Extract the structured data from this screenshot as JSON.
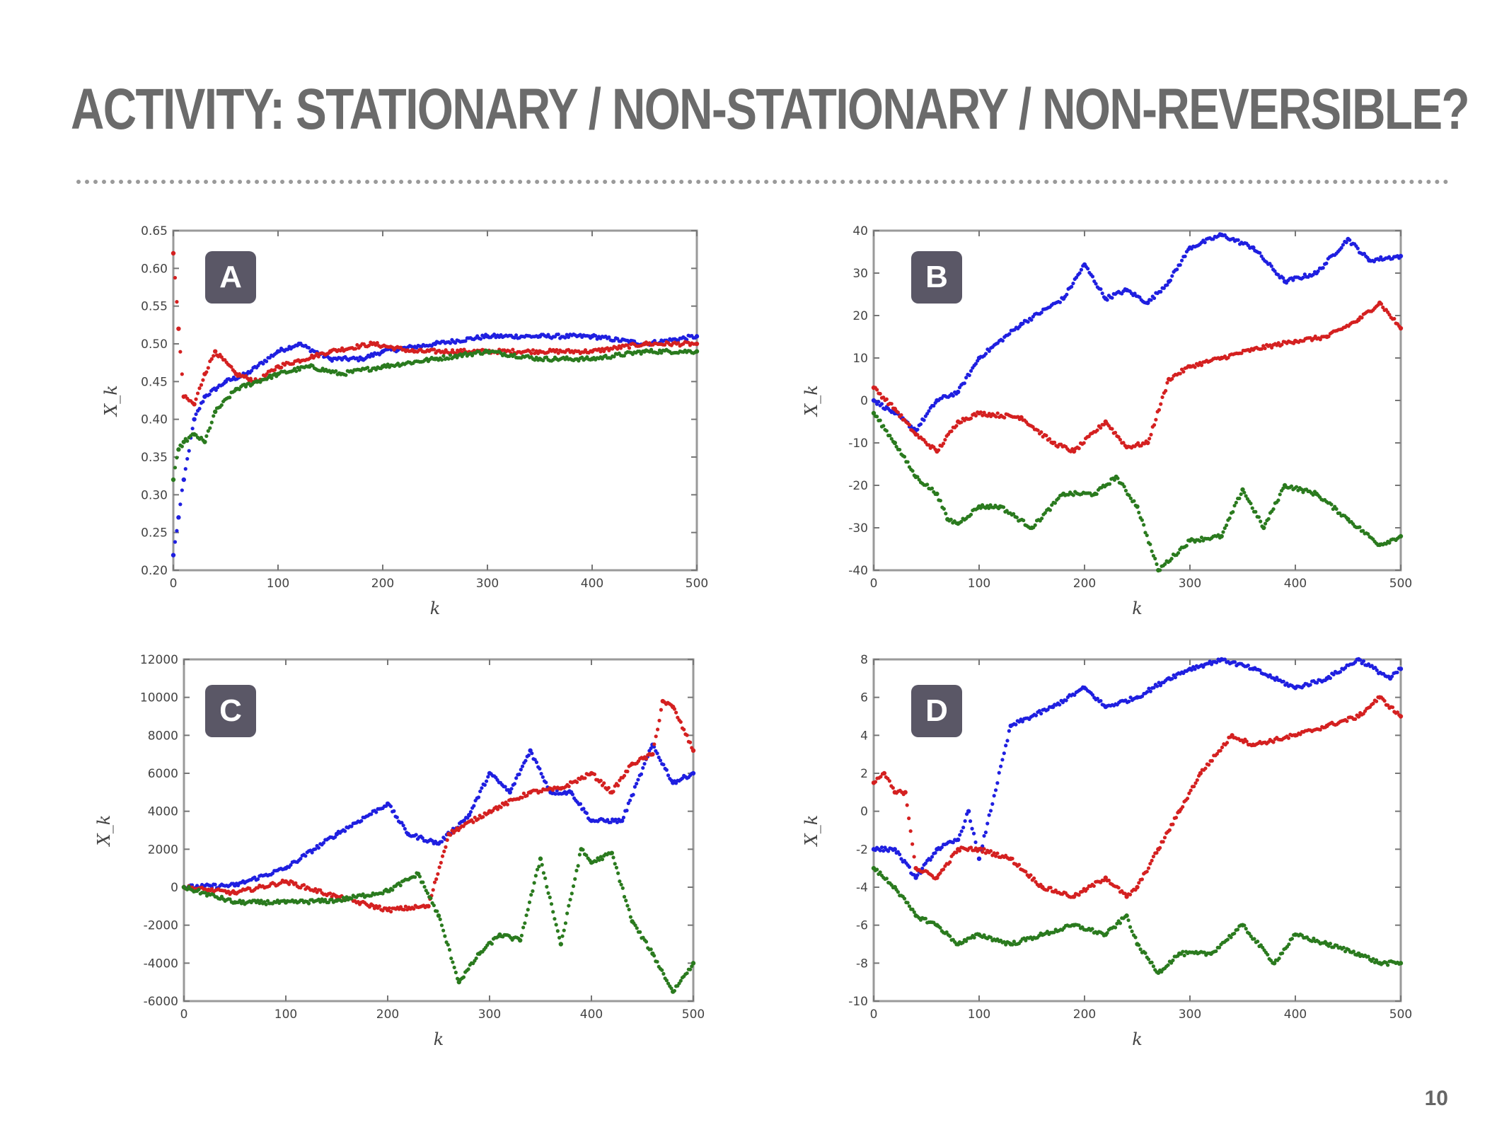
{
  "slide": {
    "title": "ACTIVITY: STATIONARY / NON-STATIONARY / NON-REVERSIBLE?",
    "page_number": "10"
  },
  "colors": {
    "blue": "#1f1fe0",
    "red": "#d42020",
    "green": "#2a7a1e",
    "label_bg": "#5a5766"
  },
  "chart_data": [
    {
      "panel": "A",
      "type": "scatter",
      "xlabel": "k",
      "ylabel": "X_k",
      "xlim": [
        0,
        500
      ],
      "ylim": [
        0.2,
        0.65
      ],
      "xticks": [
        "0",
        "100",
        "200",
        "300",
        "400",
        "500"
      ],
      "yticks": [
        "0.20",
        "0.25",
        "0.30",
        "0.35",
        "0.40",
        "0.45",
        "0.50",
        "0.55",
        "0.60",
        "0.65"
      ],
      "series": [
        {
          "color": "blue",
          "x": [
            0,
            5,
            10,
            20,
            30,
            50,
            70,
            100,
            120,
            150,
            180,
            200,
            250,
            300,
            350,
            400,
            450,
            500
          ],
          "y": [
            0.22,
            0.27,
            0.32,
            0.4,
            0.43,
            0.45,
            0.46,
            0.49,
            0.5,
            0.48,
            0.48,
            0.49,
            0.5,
            0.51,
            0.51,
            0.51,
            0.5,
            0.51
          ]
        },
        {
          "color": "red",
          "x": [
            0,
            5,
            10,
            20,
            30,
            40,
            60,
            80,
            100,
            150,
            190,
            230,
            300,
            350,
            400,
            450,
            500
          ],
          "y": [
            0.62,
            0.52,
            0.43,
            0.42,
            0.46,
            0.49,
            0.46,
            0.45,
            0.47,
            0.49,
            0.5,
            0.49,
            0.49,
            0.49,
            0.49,
            0.5,
            0.5
          ]
        },
        {
          "color": "green",
          "x": [
            0,
            5,
            10,
            20,
            30,
            40,
            60,
            80,
            100,
            130,
            160,
            200,
            250,
            300,
            350,
            400,
            450,
            500
          ],
          "y": [
            0.32,
            0.36,
            0.37,
            0.38,
            0.37,
            0.41,
            0.44,
            0.45,
            0.46,
            0.47,
            0.46,
            0.47,
            0.48,
            0.49,
            0.48,
            0.48,
            0.49,
            0.49
          ]
        }
      ]
    },
    {
      "panel": "B",
      "type": "scatter",
      "xlabel": "k",
      "ylabel": "X_k",
      "xlim": [
        0,
        500
      ],
      "ylim": [
        -40,
        40
      ],
      "xticks": [
        "0",
        "100",
        "200",
        "300",
        "400",
        "500"
      ],
      "yticks": [
        "-40",
        "-30",
        "-20",
        "-10",
        "0",
        "10",
        "20",
        "30",
        "40"
      ],
      "series": [
        {
          "color": "blue",
          "x": [
            0,
            20,
            40,
            60,
            80,
            100,
            140,
            180,
            200,
            220,
            240,
            260,
            280,
            300,
            330,
            360,
            390,
            420,
            450,
            470,
            500
          ],
          "y": [
            0,
            -3,
            -7,
            0,
            2,
            10,
            18,
            24,
            32,
            24,
            26,
            23,
            28,
            36,
            39,
            36,
            28,
            30,
            38,
            33,
            34
          ]
        },
        {
          "color": "red",
          "x": [
            0,
            20,
            40,
            60,
            80,
            100,
            140,
            170,
            190,
            220,
            240,
            260,
            280,
            300,
            330,
            360,
            400,
            430,
            460,
            480,
            500
          ],
          "y": [
            3,
            -2,
            -8,
            -12,
            -5,
            -3,
            -4,
            -10,
            -12,
            -5,
            -11,
            -10,
            5,
            8,
            10,
            12,
            14,
            15,
            19,
            23,
            17
          ]
        },
        {
          "color": "green",
          "x": [
            0,
            20,
            40,
            60,
            70,
            80,
            100,
            120,
            150,
            180,
            210,
            230,
            250,
            270,
            300,
            330,
            350,
            370,
            390,
            420,
            450,
            480,
            500
          ],
          "y": [
            -3,
            -10,
            -18,
            -22,
            -28,
            -29,
            -25,
            -25,
            -30,
            -22,
            -22,
            -18,
            -25,
            -40,
            -33,
            -32,
            -21,
            -30,
            -20,
            -22,
            -28,
            -34,
            -32
          ]
        }
      ]
    },
    {
      "panel": "C",
      "type": "scatter",
      "xlabel": "k",
      "ylabel": "X_k",
      "xlim": [
        0,
        500
      ],
      "ylim": [
        -6000,
        12000
      ],
      "xticks": [
        "0",
        "100",
        "200",
        "300",
        "400",
        "500"
      ],
      "yticks": [
        "-6000",
        "-4000",
        "-2000",
        "0",
        "2000",
        "4000",
        "6000",
        "8000",
        "10000",
        "12000"
      ],
      "series": [
        {
          "color": "blue",
          "x": [
            0,
            50,
            100,
            150,
            200,
            220,
            250,
            280,
            300,
            320,
            340,
            360,
            380,
            400,
            430,
            460,
            480,
            500
          ],
          "y": [
            0,
            100,
            1000,
            2800,
            4400,
            2800,
            2300,
            3800,
            6000,
            5000,
            7200,
            5000,
            5000,
            3500,
            3500,
            7500,
            5500,
            6000
          ]
        },
        {
          "color": "red",
          "x": [
            0,
            50,
            100,
            150,
            200,
            240,
            260,
            300,
            340,
            370,
            400,
            420,
            440,
            460,
            470,
            480,
            500
          ],
          "y": [
            0,
            -300,
            300,
            -500,
            -1200,
            -1000,
            2800,
            4000,
            5000,
            5200,
            6000,
            5000,
            6500,
            7000,
            9800,
            9500,
            7200
          ]
        },
        {
          "color": "green",
          "x": [
            0,
            50,
            100,
            150,
            200,
            230,
            250,
            270,
            290,
            310,
            330,
            350,
            370,
            390,
            400,
            420,
            440,
            460,
            480,
            500
          ],
          "y": [
            0,
            -800,
            -800,
            -700,
            -200,
            700,
            -1500,
            -5000,
            -3500,
            -2500,
            -2800,
            1500,
            -3000,
            2000,
            1300,
            1800,
            -1800,
            -3500,
            -5500,
            -4000
          ]
        }
      ]
    },
    {
      "panel": "D",
      "type": "scatter",
      "xlabel": "k",
      "ylabel": "X_k",
      "xlim": [
        0,
        500
      ],
      "ylim": [
        -10,
        8
      ],
      "xticks": [
        "0",
        "100",
        "200",
        "300",
        "400",
        "500"
      ],
      "yticks": [
        "-10",
        "-8",
        "-6",
        "-4",
        "-2",
        "0",
        "2",
        "4",
        "6",
        "8"
      ],
      "series": [
        {
          "color": "blue",
          "x": [
            0,
            20,
            40,
            60,
            80,
            90,
            100,
            130,
            170,
            200,
            220,
            250,
            280,
            300,
            330,
            360,
            400,
            430,
            460,
            490,
            500
          ],
          "y": [
            -2,
            -2,
            -3.5,
            -2,
            -1.5,
            0,
            -2.5,
            4.5,
            5.5,
            6.5,
            5.5,
            6,
            7,
            7.5,
            8,
            7.5,
            6.5,
            7,
            8,
            7,
            7.5
          ]
        },
        {
          "color": "red",
          "x": [
            0,
            10,
            20,
            30,
            40,
            60,
            80,
            100,
            130,
            160,
            190,
            220,
            240,
            250,
            270,
            290,
            310,
            340,
            360,
            400,
            430,
            460,
            480,
            500
          ],
          "y": [
            1.5,
            2,
            1,
            1,
            -3,
            -3.5,
            -2,
            -2,
            -2.5,
            -4,
            -4.5,
            -3.5,
            -4.5,
            -4,
            -2,
            0,
            2,
            4,
            3.5,
            4,
            4.5,
            5,
            6,
            5
          ]
        },
        {
          "color": "green",
          "x": [
            0,
            20,
            40,
            60,
            80,
            100,
            130,
            160,
            190,
            220,
            240,
            250,
            270,
            290,
            320,
            350,
            380,
            400,
            430,
            460,
            480,
            500
          ],
          "y": [
            -3,
            -4,
            -5.5,
            -6,
            -7,
            -6.5,
            -7,
            -6.5,
            -6,
            -6.5,
            -5.5,
            -7,
            -8.5,
            -7.5,
            -7.5,
            -6,
            -8,
            -6.5,
            -7,
            -7.5,
            -8,
            -8
          ]
        }
      ]
    }
  ]
}
